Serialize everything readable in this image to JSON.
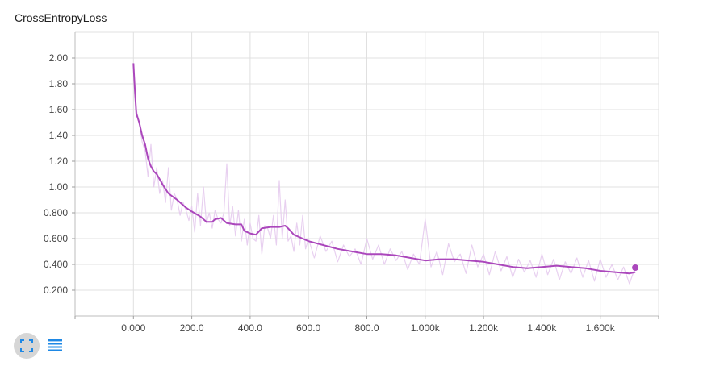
{
  "chart_data": {
    "type": "line",
    "title": "CrossEntropyLoss",
    "xlabel": "",
    "ylabel": "",
    "xlim": [
      -200,
      1800
    ],
    "ylim": [
      0,
      2.2
    ],
    "x_ticks": [
      0,
      200,
      400,
      600,
      800,
      1000,
      1200,
      1400,
      1600
    ],
    "x_tick_labels": [
      "0.000",
      "200.0",
      "400.0",
      "600.0",
      "800.0",
      "1.000k",
      "1.200k",
      "1.400k",
      "1.600k"
    ],
    "y_ticks": [
      0.2,
      0.4,
      0.6,
      0.8,
      1.0,
      1.2,
      1.4,
      1.6,
      1.8,
      2.0
    ],
    "y_tick_labels": [
      "0.200",
      "0.400",
      "0.600",
      "0.800",
      "1.00",
      "1.20",
      "1.40",
      "1.60",
      "1.80",
      "2.00"
    ],
    "grid": true,
    "series": [
      {
        "style": "smoothed",
        "color": "#ab47bc",
        "x": [
          0,
          5,
          10,
          20,
          30,
          40,
          50,
          60,
          70,
          80,
          100,
          120,
          150,
          180,
          200,
          230,
          250,
          270,
          280,
          300,
          320,
          350,
          370,
          380,
          400,
          420,
          440,
          470,
          500,
          520,
          530,
          550,
          580,
          600,
          650,
          700,
          750,
          800,
          850,
          900,
          950,
          1000,
          1050,
          1100,
          1150,
          1200,
          1250,
          1300,
          1350,
          1400,
          1450,
          1500,
          1550,
          1600,
          1650,
          1700,
          1720
        ],
        "values": [
          1.96,
          1.75,
          1.57,
          1.5,
          1.4,
          1.33,
          1.22,
          1.16,
          1.12,
          1.1,
          1.02,
          0.95,
          0.9,
          0.84,
          0.81,
          0.77,
          0.73,
          0.73,
          0.75,
          0.76,
          0.72,
          0.71,
          0.71,
          0.66,
          0.64,
          0.63,
          0.68,
          0.69,
          0.69,
          0.7,
          0.68,
          0.63,
          0.6,
          0.58,
          0.55,
          0.52,
          0.5,
          0.48,
          0.48,
          0.47,
          0.45,
          0.43,
          0.44,
          0.44,
          0.43,
          0.42,
          0.4,
          0.38,
          0.37,
          0.38,
          0.39,
          0.38,
          0.37,
          0.35,
          0.34,
          0.33,
          0.34
        ]
      },
      {
        "style": "raw",
        "color": "#e6cbee",
        "x": [
          0,
          10,
          20,
          30,
          40,
          50,
          60,
          70,
          80,
          90,
          100,
          110,
          120,
          130,
          140,
          150,
          160,
          170,
          180,
          190,
          200,
          210,
          220,
          230,
          240,
          250,
          260,
          270,
          280,
          290,
          300,
          310,
          320,
          330,
          340,
          350,
          360,
          370,
          380,
          390,
          400,
          410,
          420,
          430,
          440,
          450,
          460,
          470,
          480,
          490,
          500,
          510,
          520,
          530,
          540,
          550,
          560,
          570,
          580,
          590,
          600,
          620,
          640,
          660,
          680,
          700,
          720,
          740,
          760,
          780,
          800,
          820,
          840,
          860,
          880,
          900,
          920,
          940,
          960,
          980,
          1000,
          1020,
          1040,
          1060,
          1080,
          1100,
          1120,
          1140,
          1160,
          1180,
          1200,
          1220,
          1240,
          1260,
          1280,
          1300,
          1320,
          1340,
          1360,
          1380,
          1400,
          1420,
          1440,
          1460,
          1480,
          1500,
          1520,
          1540,
          1560,
          1580,
          1600,
          1620,
          1640,
          1660,
          1680,
          1700,
          1720
        ],
        "values": [
          1.96,
          1.6,
          1.5,
          1.35,
          1.28,
          1.08,
          1.33,
          1.0,
          1.15,
          0.95,
          1.05,
          0.88,
          1.15,
          0.82,
          0.95,
          0.9,
          0.78,
          0.88,
          0.82,
          0.74,
          0.85,
          0.65,
          0.95,
          0.7,
          1.0,
          0.72,
          0.8,
          0.68,
          0.82,
          0.75,
          0.72,
          0.8,
          1.18,
          0.7,
          0.85,
          0.62,
          0.82,
          0.58,
          0.75,
          0.55,
          0.72,
          0.6,
          0.58,
          0.78,
          0.48,
          0.7,
          0.68,
          0.6,
          0.78,
          0.55,
          1.05,
          0.6,
          0.9,
          0.58,
          0.62,
          0.5,
          0.72,
          0.55,
          0.78,
          0.52,
          0.6,
          0.45,
          0.62,
          0.5,
          0.58,
          0.42,
          0.55,
          0.46,
          0.52,
          0.4,
          0.6,
          0.44,
          0.55,
          0.4,
          0.52,
          0.43,
          0.5,
          0.36,
          0.48,
          0.4,
          0.75,
          0.38,
          0.5,
          0.32,
          0.56,
          0.42,
          0.48,
          0.33,
          0.55,
          0.38,
          0.48,
          0.32,
          0.5,
          0.35,
          0.46,
          0.3,
          0.44,
          0.34,
          0.43,
          0.3,
          0.48,
          0.32,
          0.44,
          0.28,
          0.42,
          0.33,
          0.45,
          0.3,
          0.43,
          0.27,
          0.44,
          0.3,
          0.4,
          0.28,
          0.38,
          0.25,
          0.38
        ]
      }
    ],
    "last_point": {
      "x": 1720,
      "y": 0.375
    }
  },
  "toolbar": {
    "expand_icon": "fullscreen-icon",
    "menu_icon": "data-table-icon",
    "accent": "#1e88e5"
  }
}
